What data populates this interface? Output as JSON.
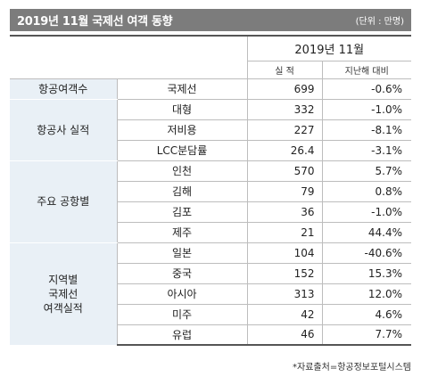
{
  "title": "2019년 11월 국제선 여객 동향",
  "unit": "(단위 : 만명)",
  "header": {
    "month": "2019년 11월",
    "col_value": "실  적",
    "col_yoy": "지난해 대비"
  },
  "groups": [
    {
      "label_lines": [
        "항공여객수"
      ],
      "rows": [
        {
          "category": "국제선",
          "value": "699",
          "yoy": "-0.6%"
        }
      ]
    },
    {
      "label_lines": [
        "항공사 실적"
      ],
      "rows": [
        {
          "category": "대형",
          "value": "332",
          "yoy": "-1.0%"
        },
        {
          "category": "저비용",
          "value": "227",
          "yoy": "-8.1%"
        },
        {
          "category": "LCC분담률",
          "value": "26.4",
          "yoy": "-3.1%"
        }
      ]
    },
    {
      "label_lines": [
        "주요 공항별"
      ],
      "rows": [
        {
          "category": "인천",
          "value": "570",
          "yoy": "5.7%"
        },
        {
          "category": "김해",
          "value": "79",
          "yoy": "0.8%"
        },
        {
          "category": "김포",
          "value": "36",
          "yoy": "-1.0%"
        },
        {
          "category": "제주",
          "value": "21",
          "yoy": "44.4%"
        }
      ]
    },
    {
      "label_lines": [
        "지역별",
        "국제선",
        "여객실적"
      ],
      "rows": [
        {
          "category": "일본",
          "value": "104",
          "yoy": "-40.6%"
        },
        {
          "category": "중국",
          "value": "152",
          "yoy": "15.3%"
        },
        {
          "category": "아시아",
          "value": "313",
          "yoy": "12.0%"
        },
        {
          "category": "미주",
          "value": "42",
          "yoy": "4.6%"
        },
        {
          "category": "유럽",
          "value": "46",
          "yoy": "7.7%"
        }
      ]
    }
  ],
  "source": "*자료출처=항공정보포털시스템"
}
